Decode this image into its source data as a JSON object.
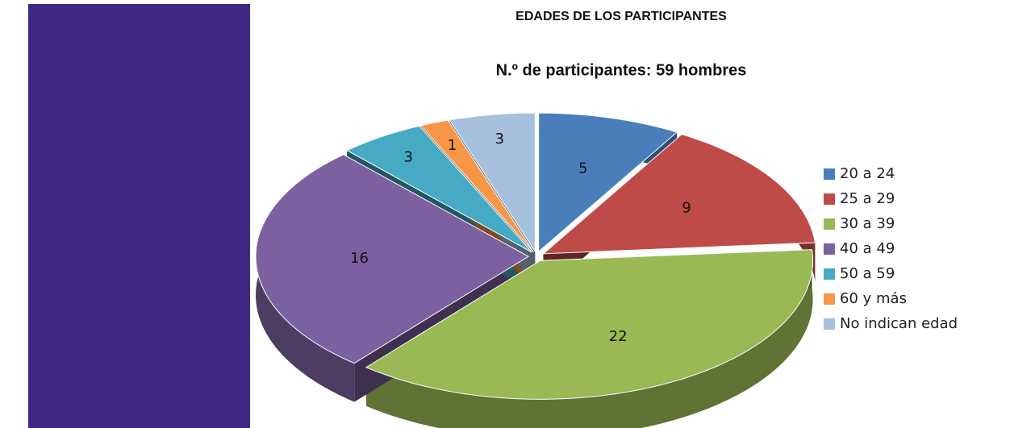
{
  "chart_data": {
    "type": "pie",
    "title": "EDADES DE LOS PARTICIPANTES",
    "subtitle": "N.º de participantes: 59 hombres",
    "categories": [
      "20 a 24",
      "25 a 29",
      "30 a 39",
      "40 a 49",
      "50 a 59",
      "60 y más",
      "No indican edad"
    ],
    "values": [
      5,
      9,
      22,
      16,
      3,
      1,
      3
    ],
    "colors": [
      "#4a7ebb",
      "#be4b48",
      "#98b954",
      "#7d60a0",
      "#46aac5",
      "#f79646",
      "#a7c0de"
    ],
    "legend": "right"
  }
}
